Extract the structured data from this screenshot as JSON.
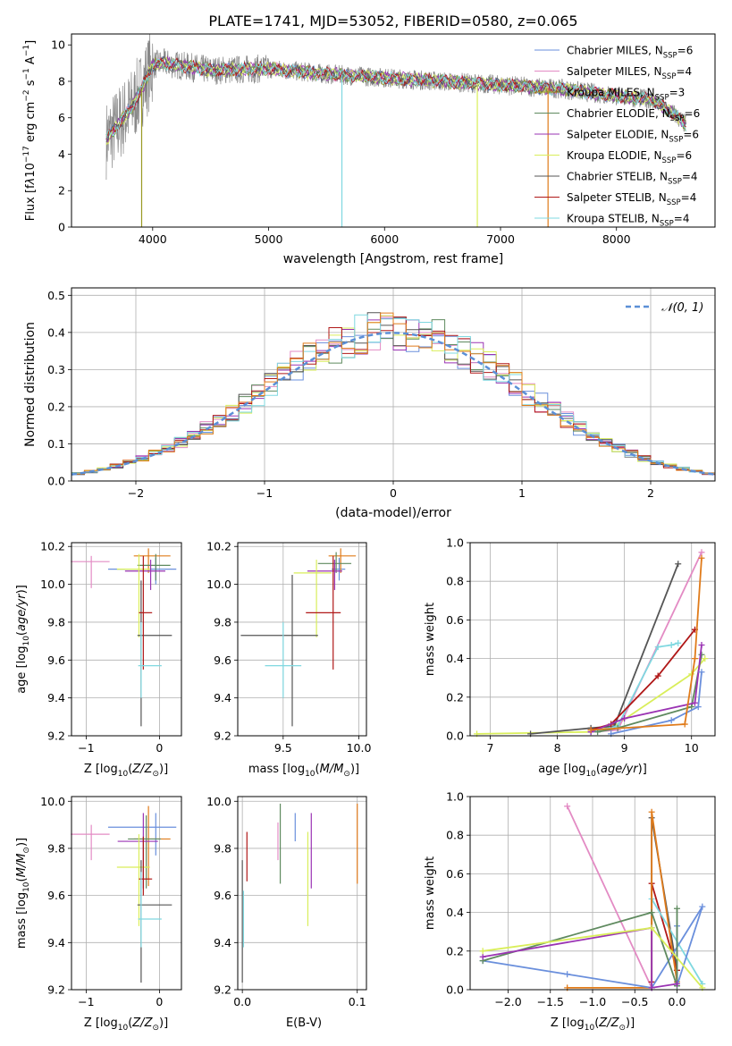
{
  "title": "PLATE=1741, MJD=53052, FIBERID=0580, z=0.065",
  "colors": {
    "Chabrier MILES": "#6a8fdc",
    "Salpeter MILES": "#e38bc4",
    "Kroupa MILES": "#999922",
    "Chabrier ELODIE": "#5f8a5f",
    "Salpeter ELODIE": "#9a33b3",
    "Kroupa ELODIE": "#d9ee5a",
    "Chabrier STELIB": "#555555",
    "Salpeter STELIB": "#b01818",
    "Kroupa STELIB": "#7fd8e0",
    "Orange": "#e07b1a",
    "Data": "#888888"
  },
  "chart_data": [
    {
      "id": "spectrum",
      "type": "line",
      "title": "PLATE=1741, MJD=53052, FIBERID=0580, z=0.065",
      "xlabel": "wavelength [Angstrom, rest frame]",
      "ylabel": "Flux [f_λ10^-17 erg cm^-2 s^-1 A^-1]",
      "xlim": [
        3300,
        8850
      ],
      "ylim": [
        0,
        10.6
      ],
      "xticks": [
        4000,
        5000,
        6000,
        7000,
        8000
      ],
      "yticks": [
        0,
        2,
        4,
        6,
        8,
        10
      ],
      "continuum": {
        "x": [
          3600,
          3700,
          3800,
          3900,
          4000,
          4100,
          4300,
          4500,
          5000,
          5500,
          6000,
          6500,
          7000,
          7500,
          8000,
          8300,
          8500,
          8600
        ],
        "y": [
          4.8,
          5.6,
          6.4,
          7.5,
          8.9,
          9.0,
          8.8,
          8.6,
          8.7,
          8.4,
          8.2,
          8.0,
          7.8,
          7.6,
          7.2,
          7.0,
          6.2,
          5.6
        ]
      },
      "legend": [
        {
          "name": "Chabrier MILES",
          "nssp": "6"
        },
        {
          "name": "Salpeter MILES",
          "nssp": "4"
        },
        {
          "name": "Kroupa MILES",
          "nssp": "3"
        },
        {
          "name": "Chabrier ELODIE",
          "nssp": "6"
        },
        {
          "name": "Salpeter ELODIE",
          "nssp": "6"
        },
        {
          "name": "Kroupa ELODIE",
          "nssp": "6"
        },
        {
          "name": "Chabrier STELIB",
          "nssp": "4"
        },
        {
          "name": "Salpeter STELIB",
          "nssp": "4"
        },
        {
          "name": "Kroupa STELIB",
          "nssp": "4"
        }
      ],
      "legend_location": "upper-right"
    },
    {
      "id": "residual_hist",
      "type": "bar",
      "xlabel": "(data-model)/error",
      "ylabel": "Normed distribution",
      "xlim": [
        -2.5,
        2.5
      ],
      "ylim": [
        0,
        0.52
      ],
      "xticks": [
        -2,
        -1,
        0,
        1,
        2
      ],
      "yticks": [
        0.0,
        0.1,
        0.2,
        0.3,
        0.4,
        0.5
      ],
      "bin_width": 0.1,
      "legend": "𝒩(0,1)",
      "legend_location": "upper-right",
      "gaussian": {
        "mu": 0,
        "sigma": 1
      }
    },
    {
      "id": "age_vs_Z",
      "type": "scatter",
      "xlabel": "Z [log10(Z/Z⊙)]",
      "ylabel": "age  [log10(age/yr)]",
      "xlim": [
        -1.2,
        0.3
      ],
      "ylim": [
        9.2,
        10.22
      ],
      "xticks": [
        -1,
        0
      ],
      "xtick_labels": [
        "−1",
        "0"
      ],
      "yticks": [
        9.2,
        9.4,
        9.6,
        9.8,
        10.0,
        10.2
      ],
      "points": [
        {
          "s": "Salpeter MILES",
          "x": -0.93,
          "y": 10.12,
          "ex": [
            0.28,
            0.25
          ],
          "ey": [
            0.14,
            0.03
          ]
        },
        {
          "s": "Chabrier MILES",
          "x": -0.05,
          "y": 10.08,
          "ex": [
            0.65,
            0.28
          ],
          "ey": [
            0.08,
            0.06
          ]
        },
        {
          "s": "Orange",
          "x": -0.15,
          "y": 10.15,
          "ex": [
            0.2,
            0.3
          ],
          "ey": [
            0.09,
            0.04
          ]
        },
        {
          "s": "Chabrier ELODIE",
          "x": -0.05,
          "y": 10.1,
          "ex": [
            0.25,
            0.2
          ],
          "ey": [
            0.08,
            0.06
          ]
        },
        {
          "s": "Salpeter ELODIE",
          "x": -0.12,
          "y": 10.07,
          "ex": [
            0.35,
            0.2
          ],
          "ey": [
            0.1,
            0.06
          ]
        },
        {
          "s": "Kroupa ELODIE",
          "x": -0.28,
          "y": 10.08,
          "ex": [
            0.3,
            0.15
          ],
          "ey": [
            0.36,
            0.08
          ]
        },
        {
          "s": "Chabrier STELIB",
          "x": -0.25,
          "y": 9.73,
          "ex": [
            0.05,
            0.42
          ],
          "ey": [
            0.48,
            0.29
          ]
        },
        {
          "s": "Salpeter STELIB",
          "x": -0.22,
          "y": 9.85,
          "ex": [
            0.06,
            0.12
          ],
          "ey": [
            0.3,
            0.3
          ]
        },
        {
          "s": "Kroupa STELIB",
          "x": -0.25,
          "y": 9.57,
          "ex": [
            0.04,
            0.28
          ],
          "ey": [
            0.17,
            0.23
          ]
        }
      ]
    },
    {
      "id": "age_vs_mass",
      "type": "scatter",
      "xlabel": "mass [log10(M/M⊙)]",
      "xlim": [
        9.2,
        10.05
      ],
      "ylim": [
        9.2,
        10.22
      ],
      "xticks": [
        9.5,
        10.0
      ],
      "xtick_labels": [
        "9.5",
        "10.0"
      ],
      "yticks": [
        9.2,
        9.4,
        9.6,
        9.8,
        10.0,
        10.2
      ],
      "points": [
        {
          "s": "Chabrier MILES",
          "x": 9.87,
          "y": 10.08,
          "ex": [
            0.05,
            0.04
          ],
          "ey": [
            0.06,
            0.06
          ]
        },
        {
          "s": "Orange",
          "x": 9.88,
          "y": 10.15,
          "ex": [
            0.08,
            0.1
          ],
          "ey": [
            0.09,
            0.04
          ]
        },
        {
          "s": "Chabrier ELODIE",
          "x": 9.85,
          "y": 10.11,
          "ex": [
            0.12,
            0.1
          ],
          "ey": [
            0.05,
            0.06
          ]
        },
        {
          "s": "Salpeter ELODIE",
          "x": 9.84,
          "y": 10.07,
          "ex": [
            0.18,
            0.05
          ],
          "ey": [
            0.1,
            0.06
          ]
        },
        {
          "s": "Kroupa ELODIE",
          "x": 9.72,
          "y": 10.06,
          "ex": [
            0.15,
            0.1
          ],
          "ey": [
            0.34,
            0.07
          ]
        },
        {
          "s": "Salpeter STELIB",
          "x": 9.83,
          "y": 9.85,
          "ex": [
            0.18,
            0.05
          ],
          "ey": [
            0.3,
            0.3
          ]
        },
        {
          "s": "Chabrier STELIB",
          "x": 9.56,
          "y": 9.73,
          "ex": [
            0.34,
            0.17
          ],
          "ey": [
            0.48,
            0.32
          ]
        },
        {
          "s": "Kroupa STELIB",
          "x": 9.5,
          "y": 9.57,
          "ex": [
            0.12,
            0.12
          ],
          "ey": [
            0.17,
            0.23
          ]
        }
      ]
    },
    {
      "id": "weight_vs_age",
      "type": "line",
      "xlabel": "age  [log10(age/yr)]",
      "ylabel": "mass weight",
      "xlim": [
        6.7,
        10.35
      ],
      "ylim": [
        0,
        1.0
      ],
      "xticks": [
        7,
        8,
        9,
        10
      ],
      "yticks": [
        0.0,
        0.2,
        0.4,
        0.6,
        0.8,
        1.0
      ],
      "series": [
        {
          "s": "Kroupa ELODIE",
          "x": [
            6.8,
            8.5,
            8.85,
            10.0,
            10.2
          ],
          "y": [
            0.01,
            0.02,
            0.05,
            0.32,
            0.4
          ]
        },
        {
          "s": "Salpeter MILES",
          "x": [
            8.5,
            8.9,
            10.15
          ],
          "y": [
            0.02,
            0.03,
            0.95
          ]
        },
        {
          "s": "Chabrier STELIB",
          "x": [
            7.6,
            8.5,
            8.85,
            9.8
          ],
          "y": [
            0.01,
            0.04,
            0.05,
            0.89
          ]
        },
        {
          "s": "Kroupa STELIB",
          "x": [
            8.5,
            8.9,
            9.5,
            9.7,
            9.8
          ],
          "y": [
            0.02,
            0.05,
            0.46,
            0.47,
            0.48
          ]
        },
        {
          "s": "Salpeter STELIB",
          "x": [
            8.5,
            8.8,
            9.5,
            10.05
          ],
          "y": [
            0.03,
            0.06,
            0.31,
            0.55
          ]
        },
        {
          "s": "Chabrier ELODIE",
          "x": [
            8.6,
            8.9,
            10.0,
            10.15
          ],
          "y": [
            0.02,
            0.04,
            0.15,
            0.42
          ]
        },
        {
          "s": "Salpeter ELODIE",
          "x": [
            8.5,
            9.0,
            10.05,
            10.15
          ],
          "y": [
            0.02,
            0.09,
            0.17,
            0.47
          ]
        },
        {
          "s": "Chabrier MILES",
          "x": [
            8.8,
            9.7,
            10.1,
            10.15
          ],
          "y": [
            0.01,
            0.08,
            0.15,
            0.33
          ]
        },
        {
          "s": "Orange",
          "x": [
            8.5,
            9.9,
            10.05,
            10.15
          ],
          "y": [
            0.03,
            0.06,
            0.4,
            0.92
          ]
        }
      ]
    },
    {
      "id": "mass_vs_Z",
      "type": "scatter",
      "xlabel": "Z [log10(Z/Z⊙)]",
      "ylabel": "mass [log10(M/M⊙)]",
      "xlim": [
        -1.2,
        0.3
      ],
      "ylim": [
        9.2,
        10.02
      ],
      "xticks": [
        -1,
        0
      ],
      "xtick_labels": [
        "−1",
        "0"
      ],
      "yticks": [
        9.2,
        9.4,
        9.6,
        9.8,
        10.0
      ],
      "points": [
        {
          "s": "Salpeter MILES",
          "x": -0.93,
          "y": 9.86,
          "ex": [
            0.28,
            0.25
          ],
          "ey": [
            0.11,
            0.04
          ]
        },
        {
          "s": "Chabrier MILES",
          "x": -0.05,
          "y": 9.89,
          "ex": [
            0.65,
            0.28
          ],
          "ey": [
            0.12,
            0.06
          ]
        },
        {
          "s": "Orange",
          "x": -0.15,
          "y": 9.84,
          "ex": [
            0.2,
            0.3
          ],
          "ey": [
            0.2,
            0.14
          ]
        },
        {
          "s": "Chabrier ELODIE",
          "x": -0.18,
          "y": 9.84,
          "ex": [
            0.25,
            0.2
          ],
          "ey": [
            0.21,
            0.1
          ]
        },
        {
          "s": "Salpeter ELODIE",
          "x": -0.22,
          "y": 9.83,
          "ex": [
            0.35,
            0.2
          ],
          "ey": [
            0.2,
            0.12
          ]
        },
        {
          "s": "Kroupa ELODIE",
          "x": -0.28,
          "y": 9.72,
          "ex": [
            0.3,
            0.15
          ],
          "ey": [
            0.25,
            0.14
          ]
        },
        {
          "s": "Chabrier STELIB",
          "x": -0.25,
          "y": 9.56,
          "ex": [
            0.05,
            0.42
          ],
          "ey": [
            0.33,
            0.19
          ]
        },
        {
          "s": "Salpeter STELIB",
          "x": -0.22,
          "y": 9.67,
          "ex": [
            0.06,
            0.12
          ],
          "ey": [
            0.07,
            0.18
          ]
        },
        {
          "s": "Kroupa STELIB",
          "x": -0.25,
          "y": 9.5,
          "ex": [
            0.04,
            0.28
          ],
          "ey": [
            0.12,
            0.2
          ]
        }
      ]
    },
    {
      "id": "mass_vs_ebv",
      "type": "scatter",
      "xlabel": "E(B-V)",
      "xlim": [
        -0.004,
        0.108
      ],
      "ylim": [
        9.2,
        10.02
      ],
      "xticks": [
        0.0,
        0.1
      ],
      "xtick_labels": [
        "0.0",
        "0.1"
      ],
      "yticks": [
        9.2,
        9.4,
        9.6,
        9.8,
        10.0
      ],
      "vbars": [
        {
          "s": "Chabrier STELIB",
          "x": 0.0,
          "y0": 9.23,
          "y1": 9.75
        },
        {
          "s": "Kroupa STELIB",
          "x": 0.001,
          "y0": 9.38,
          "y1": 9.62
        },
        {
          "s": "Salpeter STELIB",
          "x": 0.004,
          "y0": 9.66,
          "y1": 9.87
        },
        {
          "s": "Salpeter MILES",
          "x": 0.031,
          "y0": 9.75,
          "y1": 9.91
        },
        {
          "s": "Chabrier ELODIE",
          "x": 0.033,
          "y0": 9.65,
          "y1": 9.99
        },
        {
          "s": "Chabrier MILES",
          "x": 0.046,
          "y0": 9.83,
          "y1": 9.95
        },
        {
          "s": "Kroupa ELODIE",
          "x": 0.057,
          "y0": 9.47,
          "y1": 9.87
        },
        {
          "s": "Salpeter ELODIE",
          "x": 0.06,
          "y0": 9.63,
          "y1": 9.95
        },
        {
          "s": "Orange",
          "x": 0.1,
          "y0": 9.65,
          "y1": 9.99
        }
      ]
    },
    {
      "id": "weight_vs_Z",
      "type": "line",
      "xlabel": "Z [log10(Z/Z⊙)]",
      "ylabel": "mass weight",
      "xlim": [
        -2.45,
        0.45
      ],
      "ylim": [
        0,
        1.0
      ],
      "xticks": [
        -2.0,
        -1.5,
        -1.0,
        -0.5,
        0.0
      ],
      "xtick_labels": [
        "−2.0",
        "−1.5",
        "−1.0",
        "−0.5",
        "0.0"
      ],
      "yticks": [
        0.0,
        0.2,
        0.4,
        0.6,
        0.8,
        1.0
      ],
      "series": [
        {
          "s": "Salpeter MILES",
          "x": [
            -1.3,
            -0.3
          ],
          "y": [
            0.95,
            0.01
          ]
        },
        {
          "s": "Chabrier STELIB",
          "x": [
            -0.3,
            -0.3,
            0.0
          ],
          "y": [
            0.01,
            0.89,
            0.1
          ]
        },
        {
          "s": "Salpeter STELIB",
          "x": [
            -0.3,
            -0.3,
            0.0
          ],
          "y": [
            0.04,
            0.55,
            0.1
          ]
        },
        {
          "s": "Kroupa STELIB",
          "x": [
            -0.3,
            -0.3,
            0.3
          ],
          "y": [
            0.01,
            0.47,
            0.03
          ]
        },
        {
          "s": "Orange",
          "x": [
            -1.3,
            -0.3,
            -0.3,
            0.0
          ],
          "y": [
            0.01,
            0.01,
            0.92,
            0.04
          ]
        },
        {
          "s": "Chabrier MILES",
          "x": [
            -2.3,
            -1.3,
            -0.3,
            0.3,
            0.0,
            0.0
          ],
          "y": [
            0.15,
            0.08,
            0.01,
            0.43,
            0.02,
            0.33
          ]
        },
        {
          "s": "Chabrier ELODIE",
          "x": [
            -2.3,
            -0.3,
            0.0,
            0.0
          ],
          "y": [
            0.15,
            0.4,
            0.02,
            0.42
          ]
        },
        {
          "s": "Salpeter ELODIE",
          "x": [
            -2.3,
            -0.3,
            -0.3,
            0.0
          ],
          "y": [
            0.17,
            0.32,
            0.01,
            0.03
          ]
        },
        {
          "s": "Kroupa ELODIE",
          "x": [
            -2.3,
            -0.3,
            0.3
          ],
          "y": [
            0.2,
            0.32,
            0.01
          ]
        }
      ]
    }
  ]
}
